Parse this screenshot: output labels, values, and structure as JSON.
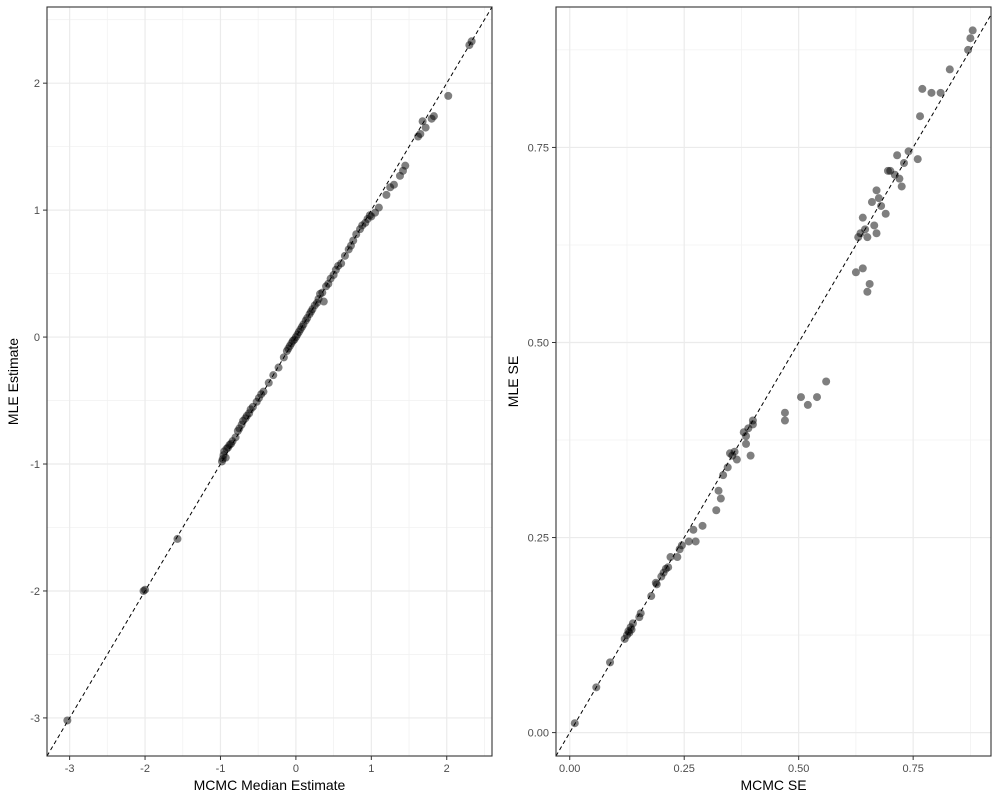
{
  "chart_data": [
    {
      "type": "scatter",
      "xlabel": "MCMC Median Estimate",
      "ylabel": "MLE Estimate",
      "xlim": [
        -3.3,
        2.6
      ],
      "ylim": [
        -3.3,
        2.6
      ],
      "x_ticks": [
        -3,
        -2,
        -1,
        0,
        1,
        2
      ],
      "y_ticks": [
        -3,
        -2,
        -1,
        0,
        1,
        2
      ],
      "x_tick_labels": [
        "-3",
        "-2",
        "-1",
        "0",
        "1",
        "2"
      ],
      "y_tick_labels": [
        "-3",
        "-2",
        "-1",
        "0",
        "1",
        "2"
      ],
      "grid": true,
      "reference_line": "y = x (dashed)",
      "point_color": "#000000",
      "point_opacity": 0.5,
      "points": [
        {
          "x": -3.03,
          "y": -3.02
        },
        {
          "x": -2.02,
          "y": -2.0
        },
        {
          "x": -2.0,
          "y": -1.99
        },
        {
          "x": -1.57,
          "y": -1.59
        },
        {
          "x": -0.98,
          "y": -0.98
        },
        {
          "x": -0.97,
          "y": -0.96
        },
        {
          "x": -0.96,
          "y": -0.93
        },
        {
          "x": -0.95,
          "y": -0.9
        },
        {
          "x": -0.93,
          "y": -0.95
        },
        {
          "x": -0.92,
          "y": -0.88
        },
        {
          "x": -0.9,
          "y": -0.87
        },
        {
          "x": -0.88,
          "y": -0.85
        },
        {
          "x": -0.86,
          "y": -0.84
        },
        {
          "x": -0.84,
          "y": -0.82
        },
        {
          "x": -0.8,
          "y": -0.79
        },
        {
          "x": -0.77,
          "y": -0.74
        },
        {
          "x": -0.75,
          "y": -0.72
        },
        {
          "x": -0.72,
          "y": -0.69
        },
        {
          "x": -0.7,
          "y": -0.66
        },
        {
          "x": -0.67,
          "y": -0.64
        },
        {
          "x": -0.65,
          "y": -0.62
        },
        {
          "x": -0.62,
          "y": -0.6
        },
        {
          "x": -0.6,
          "y": -0.57
        },
        {
          "x": -0.57,
          "y": -0.55
        },
        {
          "x": -0.52,
          "y": -0.51
        },
        {
          "x": -0.49,
          "y": -0.48
        },
        {
          "x": -0.46,
          "y": -0.45
        },
        {
          "x": -0.43,
          "y": -0.43
        },
        {
          "x": -0.36,
          "y": -0.36
        },
        {
          "x": -0.3,
          "y": -0.3
        },
        {
          "x": -0.23,
          "y": -0.24
        },
        {
          "x": -0.16,
          "y": -0.16
        },
        {
          "x": -0.12,
          "y": -0.11
        },
        {
          "x": -0.1,
          "y": -0.09
        },
        {
          "x": -0.08,
          "y": -0.07
        },
        {
          "x": -0.06,
          "y": -0.05
        },
        {
          "x": -0.04,
          "y": -0.03
        },
        {
          "x": -0.02,
          "y": -0.02
        },
        {
          "x": 0.0,
          "y": 0.0
        },
        {
          "x": 0.02,
          "y": 0.02
        },
        {
          "x": 0.04,
          "y": 0.04
        },
        {
          "x": 0.06,
          "y": 0.06
        },
        {
          "x": 0.08,
          "y": 0.08
        },
        {
          "x": 0.1,
          "y": 0.1
        },
        {
          "x": 0.13,
          "y": 0.13
        },
        {
          "x": 0.15,
          "y": 0.15
        },
        {
          "x": 0.18,
          "y": 0.18
        },
        {
          "x": 0.2,
          "y": 0.2
        },
        {
          "x": 0.22,
          "y": 0.22
        },
        {
          "x": 0.25,
          "y": 0.25
        },
        {
          "x": 0.28,
          "y": 0.27
        },
        {
          "x": 0.3,
          "y": 0.3
        },
        {
          "x": 0.32,
          "y": 0.34
        },
        {
          "x": 0.35,
          "y": 0.35
        },
        {
          "x": 0.37,
          "y": 0.28
        },
        {
          "x": 0.4,
          "y": 0.4
        },
        {
          "x": 0.43,
          "y": 0.42
        },
        {
          "x": 0.46,
          "y": 0.46
        },
        {
          "x": 0.5,
          "y": 0.49
        },
        {
          "x": 0.53,
          "y": 0.53
        },
        {
          "x": 0.56,
          "y": 0.56
        },
        {
          "x": 0.6,
          "y": 0.58
        },
        {
          "x": 0.65,
          "y": 0.64
        },
        {
          "x": 0.7,
          "y": 0.69
        },
        {
          "x": 0.73,
          "y": 0.72
        },
        {
          "x": 0.76,
          "y": 0.76
        },
        {
          "x": 0.8,
          "y": 0.81
        },
        {
          "x": 0.85,
          "y": 0.85
        },
        {
          "x": 0.88,
          "y": 0.88
        },
        {
          "x": 0.92,
          "y": 0.9
        },
        {
          "x": 0.95,
          "y": 0.93
        },
        {
          "x": 0.98,
          "y": 0.96
        },
        {
          "x": 1.0,
          "y": 0.95
        },
        {
          "x": 1.05,
          "y": 0.98
        },
        {
          "x": 1.1,
          "y": 1.02
        },
        {
          "x": 1.2,
          "y": 1.12
        },
        {
          "x": 1.25,
          "y": 1.18
        },
        {
          "x": 1.3,
          "y": 1.2
        },
        {
          "x": 1.38,
          "y": 1.27
        },
        {
          "x": 1.42,
          "y": 1.31
        },
        {
          "x": 1.45,
          "y": 1.35
        },
        {
          "x": 1.62,
          "y": 1.58
        },
        {
          "x": 1.65,
          "y": 1.6
        },
        {
          "x": 1.68,
          "y": 1.7
        },
        {
          "x": 1.72,
          "y": 1.65
        },
        {
          "x": 1.8,
          "y": 1.72
        },
        {
          "x": 1.83,
          "y": 1.74
        },
        {
          "x": 2.02,
          "y": 1.9
        },
        {
          "x": 2.3,
          "y": 2.3
        },
        {
          "x": 2.33,
          "y": 2.33
        }
      ]
    },
    {
      "type": "scatter",
      "xlabel": "MCMC SE",
      "ylabel": "MLE SE",
      "xlim": [
        -0.03,
        0.92
      ],
      "ylim": [
        -0.03,
        0.93
      ],
      "x_ticks": [
        0.0,
        0.25,
        0.5,
        0.75
      ],
      "y_ticks": [
        0.0,
        0.25,
        0.5,
        0.75
      ],
      "x_tick_labels": [
        "0.00",
        "0.25",
        "0.50",
        "0.75"
      ],
      "y_tick_labels": [
        "0.00",
        "0.25",
        "0.50",
        "0.75"
      ],
      "grid": true,
      "reference_line": "y = x (dashed)",
      "point_color": "#000000",
      "point_opacity": 0.5,
      "points": [
        {
          "x": 0.011,
          "y": 0.012
        },
        {
          "x": 0.058,
          "y": 0.058
        },
        {
          "x": 0.088,
          "y": 0.09
        },
        {
          "x": 0.12,
          "y": 0.12
        },
        {
          "x": 0.125,
          "y": 0.125
        },
        {
          "x": 0.128,
          "y": 0.13
        },
        {
          "x": 0.13,
          "y": 0.128
        },
        {
          "x": 0.133,
          "y": 0.135
        },
        {
          "x": 0.135,
          "y": 0.132
        },
        {
          "x": 0.138,
          "y": 0.14
        },
        {
          "x": 0.152,
          "y": 0.148
        },
        {
          "x": 0.155,
          "y": 0.153
        },
        {
          "x": 0.178,
          "y": 0.175
        },
        {
          "x": 0.188,
          "y": 0.192
        },
        {
          "x": 0.19,
          "y": 0.19
        },
        {
          "x": 0.2,
          "y": 0.2
        },
        {
          "x": 0.205,
          "y": 0.205
        },
        {
          "x": 0.21,
          "y": 0.21
        },
        {
          "x": 0.215,
          "y": 0.212
        },
        {
          "x": 0.22,
          "y": 0.225
        },
        {
          "x": 0.235,
          "y": 0.225
        },
        {
          "x": 0.24,
          "y": 0.235
        },
        {
          "x": 0.245,
          "y": 0.24
        },
        {
          "x": 0.26,
          "y": 0.245
        },
        {
          "x": 0.27,
          "y": 0.26
        },
        {
          "x": 0.275,
          "y": 0.245
        },
        {
          "x": 0.29,
          "y": 0.265
        },
        {
          "x": 0.32,
          "y": 0.285
        },
        {
          "x": 0.325,
          "y": 0.31
        },
        {
          "x": 0.33,
          "y": 0.3
        },
        {
          "x": 0.335,
          "y": 0.33
        },
        {
          "x": 0.345,
          "y": 0.34
        },
        {
          "x": 0.35,
          "y": 0.358
        },
        {
          "x": 0.355,
          "y": 0.355
        },
        {
          "x": 0.36,
          "y": 0.36
        },
        {
          "x": 0.365,
          "y": 0.35
        },
        {
          "x": 0.38,
          "y": 0.385
        },
        {
          "x": 0.385,
          "y": 0.38
        },
        {
          "x": 0.385,
          "y": 0.37
        },
        {
          "x": 0.39,
          "y": 0.39
        },
        {
          "x": 0.395,
          "y": 0.355
        },
        {
          "x": 0.4,
          "y": 0.4
        },
        {
          "x": 0.4,
          "y": 0.395
        },
        {
          "x": 0.47,
          "y": 0.41
        },
        {
          "x": 0.47,
          "y": 0.4
        },
        {
          "x": 0.505,
          "y": 0.43
        },
        {
          "x": 0.52,
          "y": 0.42
        },
        {
          "x": 0.54,
          "y": 0.43
        },
        {
          "x": 0.56,
          "y": 0.45
        },
        {
          "x": 0.625,
          "y": 0.59
        },
        {
          "x": 0.63,
          "y": 0.635
        },
        {
          "x": 0.635,
          "y": 0.64
        },
        {
          "x": 0.64,
          "y": 0.595
        },
        {
          "x": 0.64,
          "y": 0.66
        },
        {
          "x": 0.645,
          "y": 0.645
        },
        {
          "x": 0.65,
          "y": 0.635
        },
        {
          "x": 0.65,
          "y": 0.565
        },
        {
          "x": 0.655,
          "y": 0.575
        },
        {
          "x": 0.66,
          "y": 0.68
        },
        {
          "x": 0.665,
          "y": 0.65
        },
        {
          "x": 0.67,
          "y": 0.695
        },
        {
          "x": 0.67,
          "y": 0.64
        },
        {
          "x": 0.675,
          "y": 0.685
        },
        {
          "x": 0.68,
          "y": 0.675
        },
        {
          "x": 0.69,
          "y": 0.665
        },
        {
          "x": 0.695,
          "y": 0.72
        },
        {
          "x": 0.7,
          "y": 0.72
        },
        {
          "x": 0.71,
          "y": 0.715
        },
        {
          "x": 0.715,
          "y": 0.74
        },
        {
          "x": 0.72,
          "y": 0.71
        },
        {
          "x": 0.725,
          "y": 0.7
        },
        {
          "x": 0.73,
          "y": 0.73
        },
        {
          "x": 0.74,
          "y": 0.745
        },
        {
          "x": 0.76,
          "y": 0.735
        },
        {
          "x": 0.765,
          "y": 0.79
        },
        {
          "x": 0.77,
          "y": 0.825
        },
        {
          "x": 0.79,
          "y": 0.82
        },
        {
          "x": 0.81,
          "y": 0.82
        },
        {
          "x": 0.83,
          "y": 0.85
        },
        {
          "x": 0.87,
          "y": 0.875
        },
        {
          "x": 0.875,
          "y": 0.89
        },
        {
          "x": 0.88,
          "y": 0.9
        }
      ]
    }
  ]
}
